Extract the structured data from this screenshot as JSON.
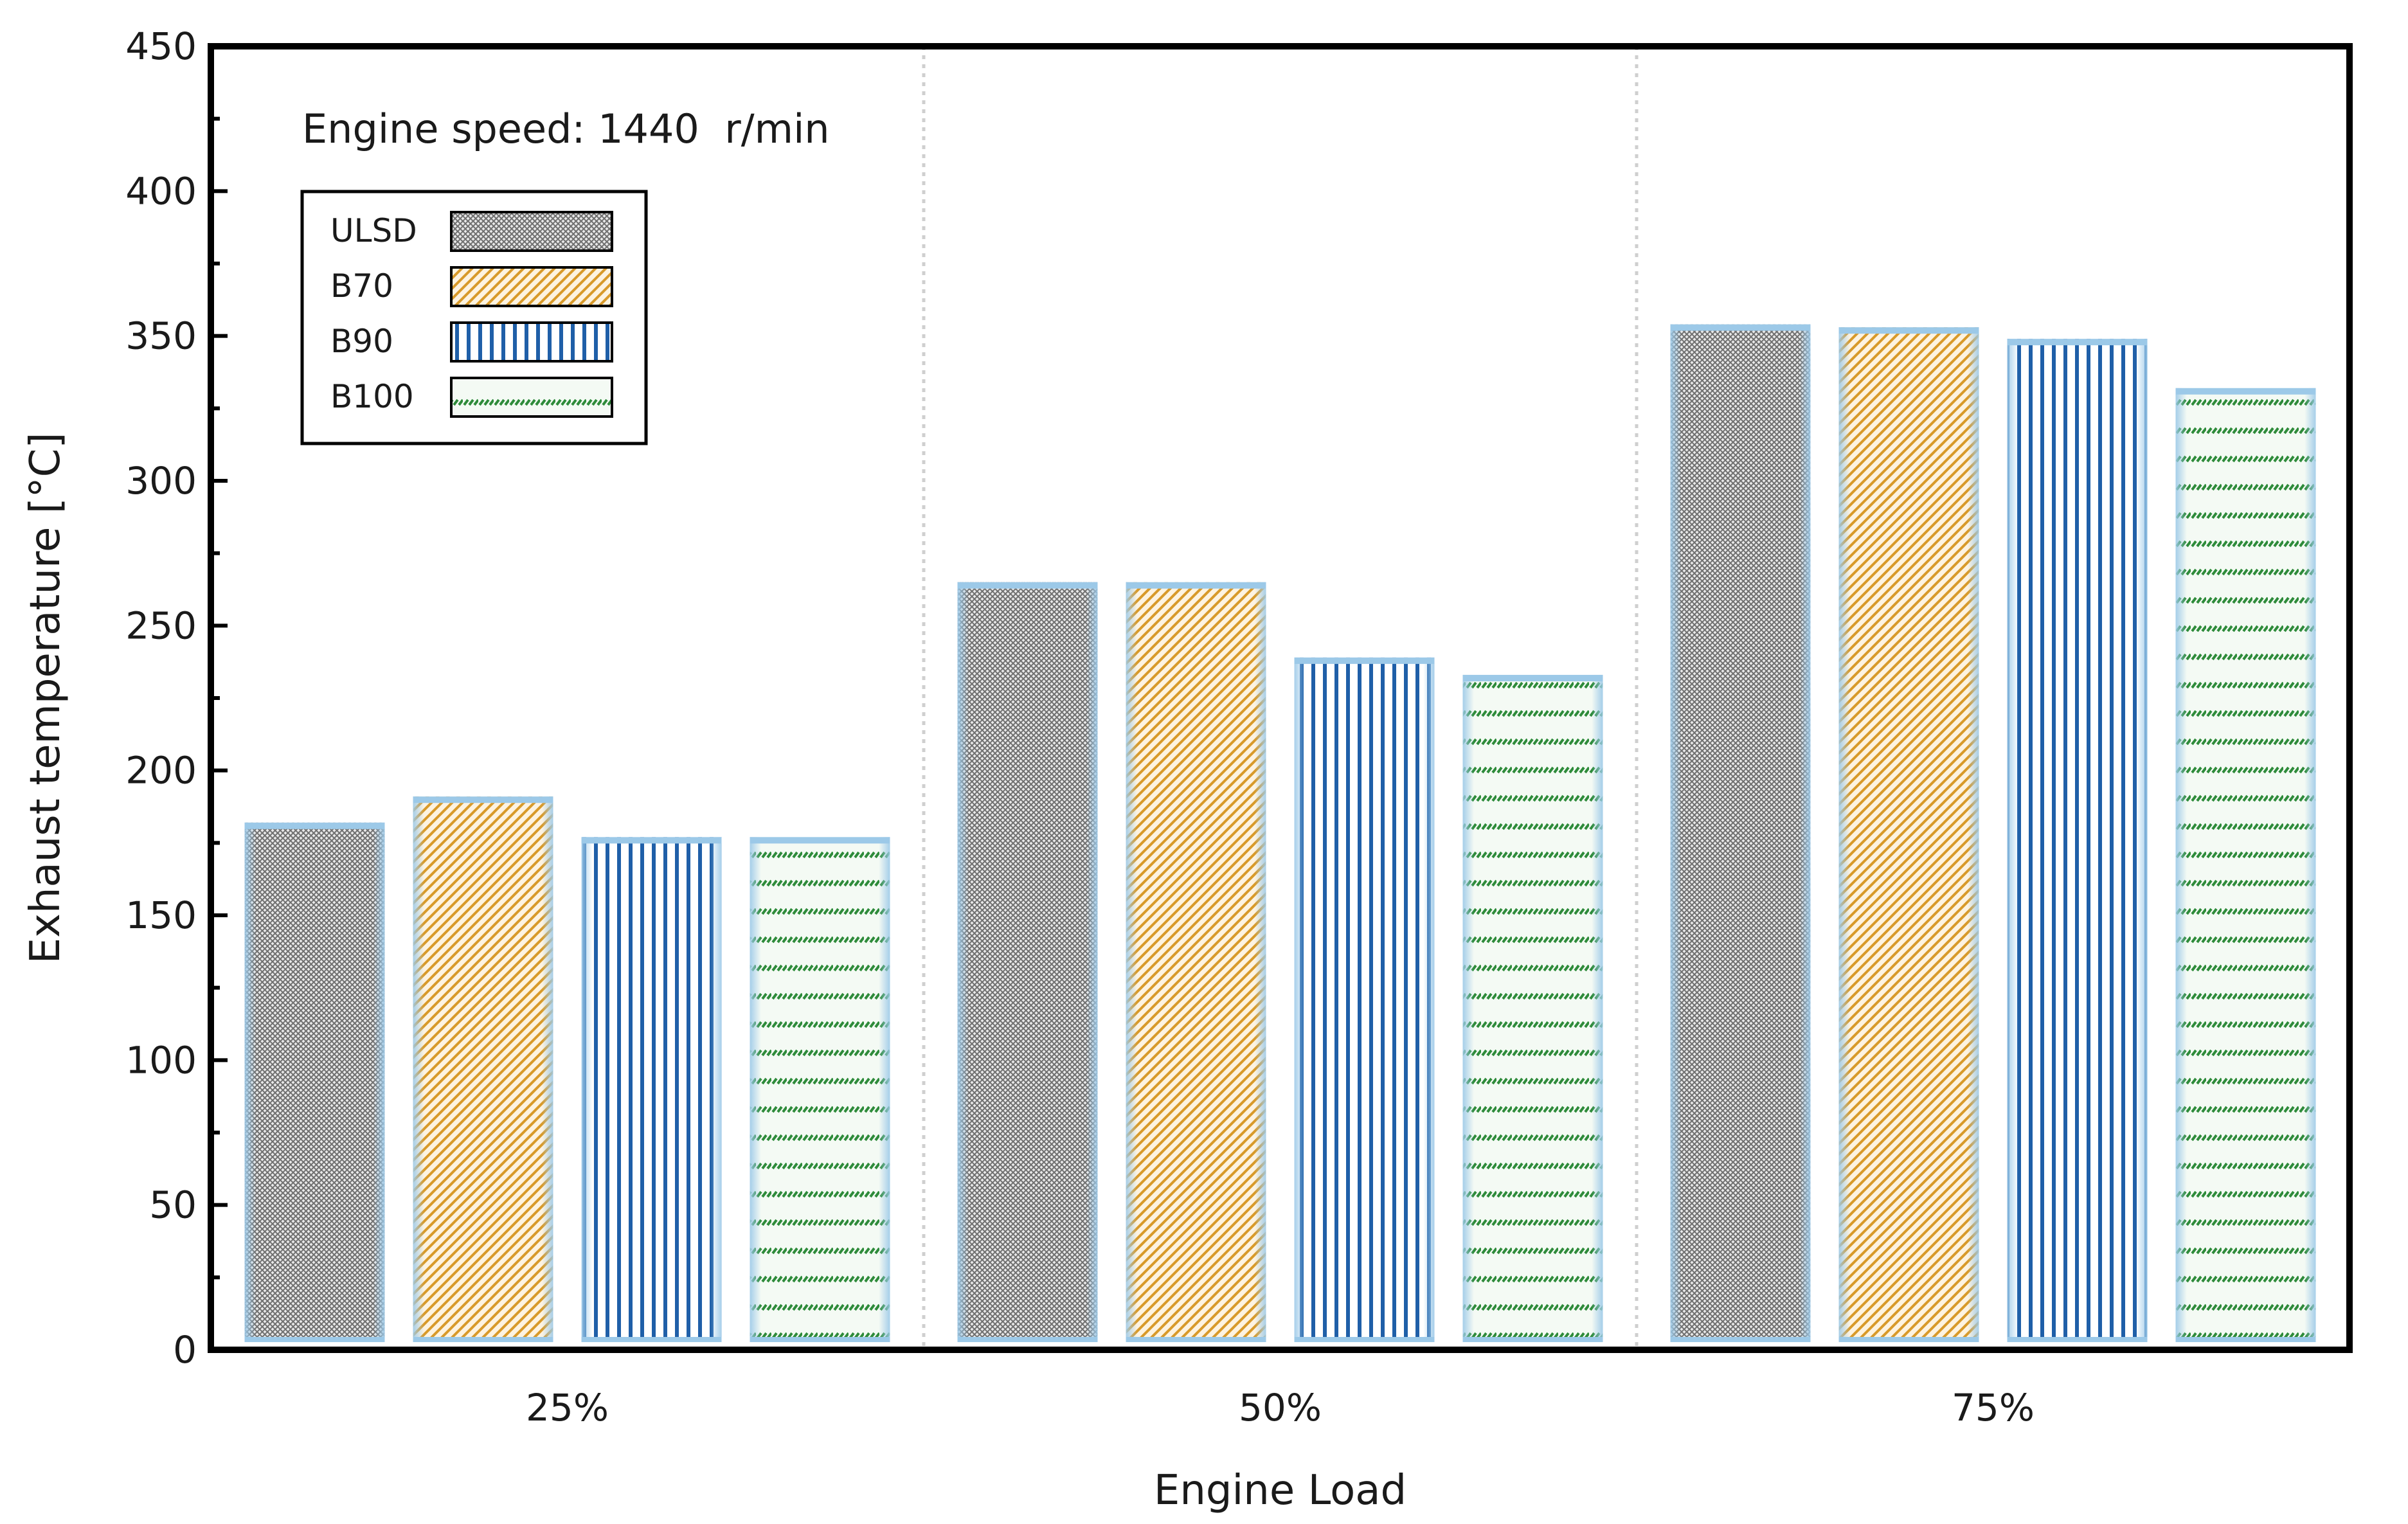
{
  "chart_data": {
    "type": "bar",
    "title": "",
    "annotation": "Engine speed: 1440  r/min",
    "xlabel": "Engine Load",
    "ylabel": "Exhaust temperature [°C]",
    "ylim": [
      0,
      450
    ],
    "yticks": [
      0,
      50,
      100,
      150,
      200,
      250,
      300,
      350,
      400,
      450
    ],
    "categories": [
      "25%",
      "50%",
      "75%"
    ],
    "legend_position": "top-left",
    "series": [
      {
        "name": "ULSD",
        "values": [
          182,
          265,
          354
        ],
        "pattern": "crosshatch",
        "color": "#7f7f7f"
      },
      {
        "name": "B70",
        "values": [
          191,
          265,
          353
        ],
        "pattern": "diagonal",
        "color": "#d89a2a"
      },
      {
        "name": "B90",
        "values": [
          177,
          239,
          349
        ],
        "pattern": "vertical",
        "color": "#1f5fa8"
      },
      {
        "name": "B100",
        "values": [
          177,
          233,
          332
        ],
        "pattern": "dashes",
        "color": "#2e8b3a"
      }
    ],
    "bar_edge_color": "#9cc9e8",
    "grid": false
  }
}
